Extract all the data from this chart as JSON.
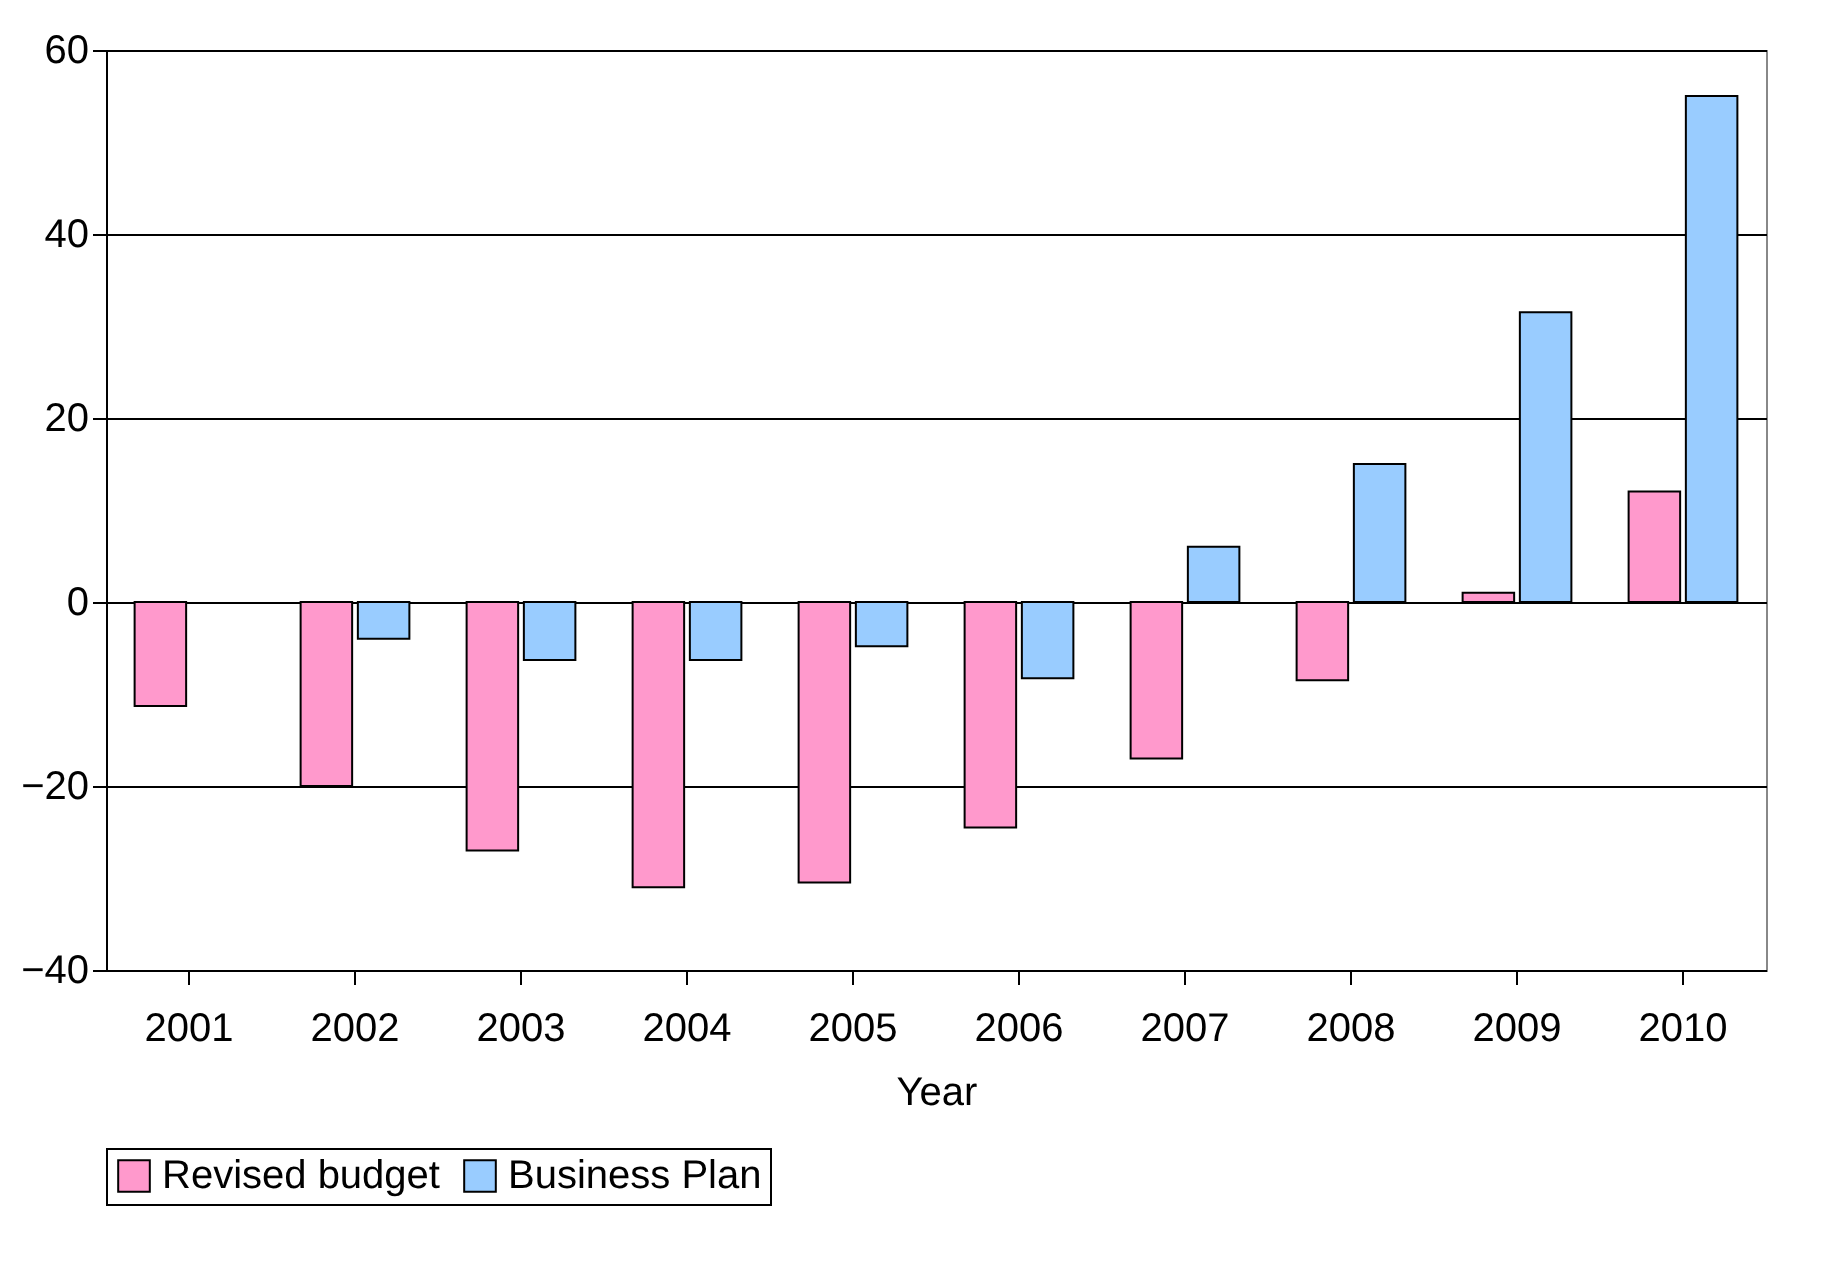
{
  "chart_data": {
    "type": "bar",
    "xlabel": "Year",
    "categories": [
      "2001",
      "2002",
      "2003",
      "2004",
      "2005",
      "2006",
      "2007",
      "2008",
      "2009",
      "2010"
    ],
    "series": [
      {
        "name": "Revised budget",
        "color": "#ff99cc",
        "values": [
          -11.3,
          -20,
          -27,
          -31,
          -30.5,
          -24.5,
          -17,
          -8.5,
          1,
          12
        ]
      },
      {
        "name": "Business Plan",
        "color": "#99ccff",
        "values": [
          null,
          -4,
          -6.3,
          -6.3,
          -4.8,
          -8.3,
          6,
          15,
          31.5,
          55
        ]
      }
    ],
    "ylim": [
      -40,
      60
    ],
    "yticks": [
      -40,
      -20,
      0,
      20,
      40,
      60
    ],
    "grid": "y",
    "legend": "bottom"
  }
}
